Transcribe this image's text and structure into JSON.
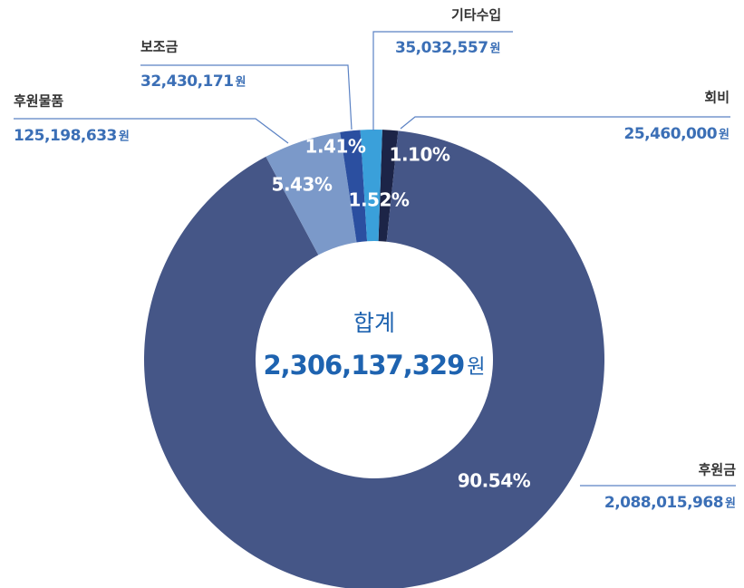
{
  "chart_data": {
    "type": "pie",
    "donut": true,
    "categories": [
      "회비",
      "후원금",
      "후원물품",
      "보조금",
      "기타수입"
    ],
    "values": [
      1.1,
      90.54,
      5.43,
      1.41,
      1.52
    ],
    "value_labels": [
      "1.10%",
      "90.54%",
      "5.43%",
      "1.41%",
      "1.52%"
    ],
    "colors": [
      "#1c2447",
      "#455687",
      "#7b99c9",
      "#2b4fa0",
      "#3aa0da"
    ],
    "amounts": [
      25460000,
      2088015968,
      125198633,
      32430171,
      35032557
    ],
    "amount_labels": [
      "25,460,000",
      "2,088,015,968",
      "125,198,633",
      "32,430,171",
      "35,032,557"
    ],
    "unit": "원",
    "total_title": "합계",
    "total": 2306137329,
    "total_label": "2,306,137,329"
  }
}
